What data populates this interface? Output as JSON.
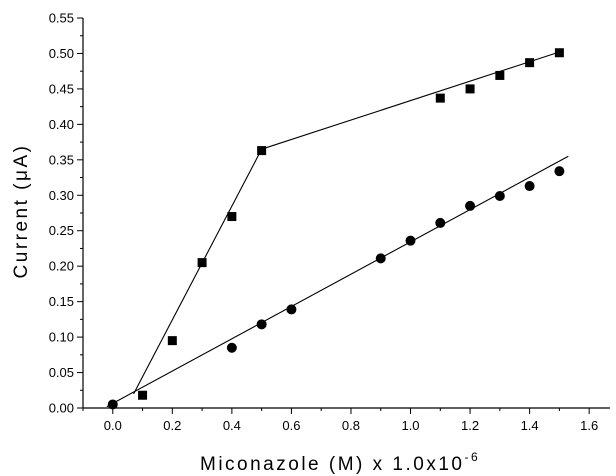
{
  "chart_data": {
    "type": "scatter",
    "title": "",
    "xlabel": "Miconazole (M) x 1.0x10",
    "xlabel_exponent": "-6",
    "ylabel": "Current (μA)",
    "xlim": [
      -0.1,
      1.67
    ],
    "ylim": [
      0,
      0.55
    ],
    "xticks": [
      "0.0",
      "0.2",
      "0.4",
      "0.6",
      "0.8",
      "1.0",
      "1.2",
      "1.4",
      "1.6"
    ],
    "xtick_values": [
      0.0,
      0.2,
      0.4,
      0.6,
      0.8,
      1.0,
      1.2,
      1.4,
      1.6
    ],
    "yticks": [
      "0.00",
      "0.05",
      "0.10",
      "0.15",
      "0.20",
      "0.25",
      "0.30",
      "0.35",
      "0.40",
      "0.45",
      "0.50",
      "0.55"
    ],
    "ytick_values": [
      0.0,
      0.05,
      0.1,
      0.15,
      0.2,
      0.25,
      0.3,
      0.35,
      0.4,
      0.45,
      0.5,
      0.55
    ],
    "grid": false,
    "legend": "none",
    "series": [
      {
        "marker": "square",
        "color": "#000000",
        "x": [
          0.1,
          0.2,
          0.3,
          0.4,
          0.5,
          1.1,
          1.2,
          1.3,
          1.4,
          1.5
        ],
        "y": [
          0.018,
          0.095,
          0.205,
          0.27,
          0.363,
          0.437,
          0.45,
          0.469,
          0.487,
          0.501
        ],
        "fit_lines": [
          {
            "x": [
              0.07,
              0.5
            ],
            "y": [
              0.02,
              0.365
            ]
          },
          {
            "x": [
              0.5,
              1.5
            ],
            "y": [
              0.365,
              0.502
            ]
          }
        ]
      },
      {
        "marker": "circle",
        "color": "#000000",
        "x": [
          0.0,
          0.4,
          0.5,
          0.6,
          0.9,
          1.0,
          1.1,
          1.2,
          1.3,
          1.4,
          1.5
        ],
        "y": [
          0.005,
          0.085,
          0.118,
          0.139,
          0.211,
          0.236,
          0.261,
          0.285,
          0.299,
          0.313,
          0.334
        ],
        "fit_lines": [
          {
            "x": [
              -0.02,
              1.53
            ],
            "y": [
              0.002,
              0.355
            ]
          }
        ]
      }
    ]
  }
}
